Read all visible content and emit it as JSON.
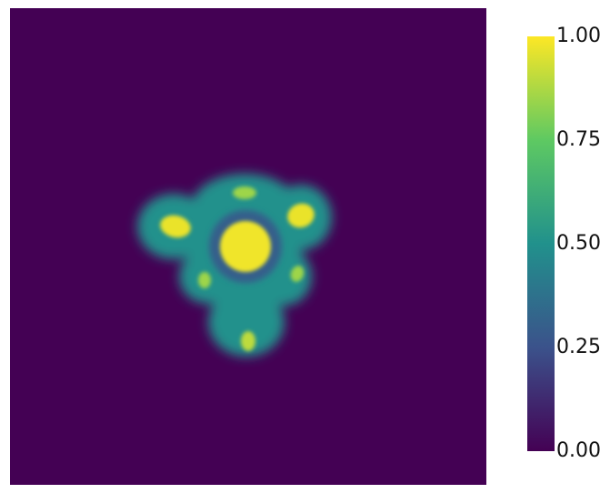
{
  "chart_data": {
    "type": "heatmap",
    "title": "",
    "xlabel": "",
    "ylabel": "",
    "grid": false,
    "colormap": "viridis",
    "colorbar": {
      "range": [
        0.0,
        1.0
      ],
      "ticks": [
        {
          "value": 0.0,
          "label": "0.00"
        },
        {
          "value": 0.25,
          "label": "0.25"
        },
        {
          "value": 0.5,
          "label": "0.50"
        },
        {
          "value": 0.75,
          "label": "0.75"
        },
        {
          "value": 1.0,
          "label": "1.00"
        }
      ],
      "placement": "right",
      "colors": [
        "#440154",
        "#3b528b",
        "#21918c",
        "#5ec962",
        "#fde725"
      ]
    },
    "background_value": 0.0,
    "field_regions": [
      {
        "name": "central-core",
        "value": 0.98
      },
      {
        "name": "ring-gap",
        "value": 0.3
      },
      {
        "name": "outer-lobes",
        "value": 0.5
      },
      {
        "name": "blob-upper-left",
        "value": 0.97
      },
      {
        "name": "blob-upper-right",
        "value": 0.97
      },
      {
        "name": "blob-top",
        "value": 0.85
      },
      {
        "name": "blob-lower-left",
        "value": 0.85
      },
      {
        "name": "blob-lower-right",
        "value": 0.85
      },
      {
        "name": "blob-bottom",
        "value": 0.9
      }
    ]
  }
}
